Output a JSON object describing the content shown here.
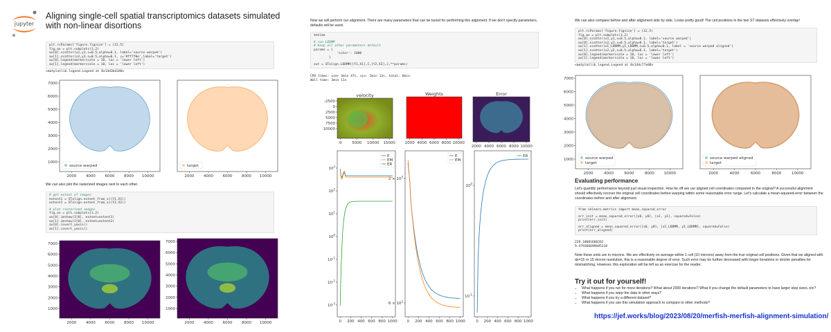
{
  "logo": "jupyter",
  "left": {
    "title": "Aligning single-cell spatial transcriptomics datasets simulated with non-linear disortions",
    "code1": [
      [
        "plt.rcParams['figure.figsize'] = (12,5)",
        "fig,ax = plt.subplots(1,2)",
        "ax[0].scatter(x1,y1,s=0.5,alpha=0.1, label='source warped')",
        "ax[1].scatter(x2,y2,s=0.5,alpha=0.1, c='#ff7f0e',label='target')",
        "ax[0].legend(markerscale = 10, loc = 'lower left')",
        "ax[1].legend(markerscale = 10, loc = 'lower left')"
      ]
    ],
    "out1": "<matplotlib.legend.Legend at 0x14d3b4340>",
    "scatter_legends": [
      "source warped",
      "target"
    ],
    "scatter_yticks": [
      "7000",
      "6000",
      "5000",
      "4000",
      "3000",
      "2000",
      "1000"
    ],
    "scatter_xticks": [
      "2000",
      "4000",
      "6000",
      "8000",
      "10000"
    ],
    "text2": "We can also plot the rasterized images next to each other.",
    "code2": [
      [
        "# get extent of images",
        "extent1 = STalign.extent_from_x((Y1,X1))",
        "extent2 = STalign.extent_from_x((Y2,X2))"
      ],
      [
        "# plot rasterized images",
        "fig,ax = plt.subplots(1,2)",
        "ax[0].imshow(I[0], extent=extent1)",
        "ax[1].imshow(J[0], extent=extent2)",
        "ax[0].invert_yaxis()",
        "ax[1].invert_yaxis()"
      ]
    ],
    "image_yticks": [
      "7000",
      "6000",
      "5000",
      "4000",
      "3000",
      "2000",
      "1000"
    ],
    "image_xticks": [
      "2000",
      "4000",
      "6000",
      "8000",
      "10000"
    ]
  },
  "middle": {
    "text": "Now we will perform our alignment. There are many parameters that can be tuned for performing this alignment. If we don't specify parameters, defaults will be used.",
    "code": [
      [
        "%%time"
      ],
      [
        "# run LDDMM",
        "# keep all other parameters default",
        "params = {",
        "            'niter': 1000",
        "        }"
      ],
      [
        "out = STalign.LDDMM([Y1,X1],I,[Y2,X2],J,**params)"
      ]
    ],
    "out": [
      "CPU times: user 3min 47s, sys: 2min 13s, total: 6min",
      "Wall time: 3min 11s"
    ],
    "images": [
      {
        "title": "velocity",
        "yticks": [
          "-2500",
          "0",
          "2500",
          "5000",
          "7500",
          "10000"
        ],
        "xticks": [
          "0",
          "5000",
          "10000",
          "15000"
        ]
      },
      {
        "title": "Weights",
        "xticks": [
          "2000",
          "4000",
          "6000",
          "8000",
          "10000"
        ]
      },
      {
        "title": "Error",
        "xticks": [
          "2000",
          "4000",
          "6000",
          "8000",
          "10000"
        ]
      }
    ],
    "line_xticks": [
      "0",
      "200",
      "400",
      "600",
      "800",
      "1000"
    ],
    "lineplots": [
      {
        "legend": [
          "E",
          "EM",
          "ER"
        ],
        "yticks": [
          {
            "base": "10",
            "exp": "3"
          },
          {
            "base": "10",
            "exp": "2"
          },
          {
            "base": "10",
            "exp": "1"
          },
          {
            "base": "10",
            "exp": "0"
          },
          {
            "base": "10",
            "exp": "-1"
          },
          {
            "base": "10",
            "exp": "-2"
          },
          {
            "base": "10",
            "exp": "-3"
          }
        ]
      },
      {
        "legend": [
          "E",
          "EM"
        ],
        "yticks": [
          {
            "mant": "2 × ",
            "base": "10",
            "exp": "3"
          },
          {
            "mant": "6 × ",
            "base": "10",
            "exp": "2"
          }
        ]
      },
      {
        "legend": [
          "ER"
        ],
        "yticks": [
          {
            "base": "10",
            "exp": "0"
          },
          {
            "base": "10",
            "exp": "-1"
          }
        ]
      }
    ]
  },
  "right": {
    "text": "We can also compare before and after alignment side by side. Looks pretty good! The cell positions in the two ST datasets effectively overlap!",
    "code1": [
      [
        "plt.rcParams['figure.figsize'] = (12,5)",
        "fig,ax = plt.subplots(1,2)",
        "ax[0].scatter(x1,y1,s=0.5,alpha=0.1, label='source warped')",
        "ax[0].scatter(x2,y2,s=0.5,alpha=0.1, label='target')",
        "ax[1].scatter(xI_LDDMM,yI_LDDMM,s=0.5,alpha=0.1, label = 'source warped aligned')",
        "ax[1].scatter(x2,y2,s=0.5,alpha=0.1, label='target')",
        "ax[0].legend(markerscale = 10, loc = 'lower left')",
        "ax[1].legend(markerscale = 10, loc = 'lower left')"
      ]
    ],
    "out1": "<matplotlib.legend.Legend at 0x14dc77e80>",
    "scatter_legends": [
      [
        "source warped",
        "target"
      ],
      [
        "source warped aligned",
        "target"
      ]
    ],
    "scatter_yticks": [
      "7000",
      "6000",
      "5000",
      "4000",
      "3000",
      "2000",
      "1000"
    ],
    "scatter_xticks": [
      "2000",
      "4000",
      "6000",
      "8000",
      "10000"
    ],
    "heading": "Evaluating performance",
    "para1": "Let's quantify performance beyond just visual inspection. How far off are our aligned cell coordinates compared to the original? A successful alignment should effectively recover the original cell coordinates before warping within some reasonable error range. Let's calculate a mean-squared-error between the coordinates before and after alignment.",
    "code2": [
      [
        "from sklearn.metrics import mean_squared_error"
      ],
      [
        "err_init = mean_squared_error([x0, y0], [x1, y1], squared=False)",
        "print(err_init)"
      ],
      [
        "err_aligned = mean_squared_error([x0, y0], [xI_LDDMM, yI_LDDMM], squared=False)",
        "print(err_aligned)"
      ]
    ],
    "out2": [
      "229.10681668262",
      "9.479366699685218"
    ],
    "para2": "Note these units are in microns. We are effectively on average within 1 cell (10 microns) away from the true original cell positions. Given that we aligned with dx=15 or 15 micron resolution, this is a reasonable degree of error. Such error may be further decreased with longer iterations or stricter penalties for mismatching. However, this exploration will be left as an exercise for the reader.",
    "heading2": "Try it out for yourself!",
    "bullets": [
      "What happens if you run for more iterations? What about 2000 iterations? What if you change the default parameters to have larger step sizes, etc?",
      "What happens if you warp the data in other ways?",
      "What happens if you try a different dataset?",
      "What happens if you use this simulation approach to compare to other methods?"
    ],
    "link": "https://jef.works/blog/2023/08/20/merfish-merfish-alignment-simulation/"
  }
}
